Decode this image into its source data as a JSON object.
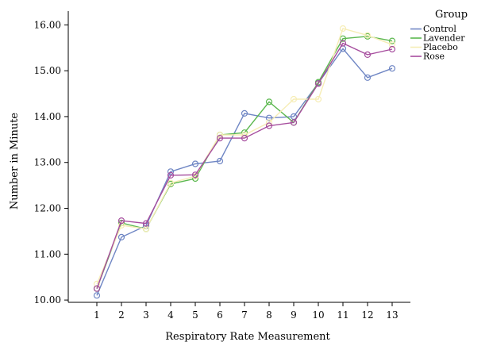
{
  "chart_data": {
    "type": "line",
    "xlabel": "Respiratory Rate Measurement",
    "ylabel": "Number in  Minute",
    "x": [
      "1",
      "2",
      "3",
      "4",
      "5",
      "6",
      "7",
      "8",
      "9",
      "10",
      "11",
      "12",
      "13"
    ],
    "ylim": [
      9.95,
      16.3
    ],
    "yticks": [
      "10.00",
      "11.00",
      "12.00",
      "13.00",
      "14.00",
      "15.00",
      "16.00"
    ],
    "yticks_values": [
      10,
      11,
      12,
      13,
      14,
      15,
      16
    ],
    "grid": false,
    "legend": {
      "title": "Group",
      "placement": "top-right"
    },
    "series": [
      {
        "name": "Control",
        "color": "#6f86c4",
        "values": [
          10.1,
          11.37,
          11.62,
          12.8,
          12.97,
          13.03,
          14.07,
          13.97,
          14.0,
          14.73,
          15.48,
          14.85,
          15.05
        ]
      },
      {
        "name": "Lavender",
        "color": "#5cb84f",
        "values": [
          10.25,
          11.68,
          11.55,
          12.53,
          12.65,
          13.6,
          13.65,
          14.32,
          13.87,
          14.75,
          15.7,
          15.75,
          15.65
        ]
      },
      {
        "name": "Placebo",
        "color": "#f6edb6",
        "values": [
          10.35,
          11.63,
          11.55,
          12.55,
          12.7,
          13.6,
          13.6,
          13.87,
          14.38,
          14.38,
          15.92,
          15.77,
          15.57
        ]
      },
      {
        "name": "Rose",
        "color": "#a64d9e",
        "values": [
          10.25,
          11.73,
          11.67,
          12.72,
          12.73,
          13.53,
          13.53,
          13.8,
          13.87,
          14.72,
          15.6,
          15.35,
          15.47
        ]
      }
    ]
  }
}
